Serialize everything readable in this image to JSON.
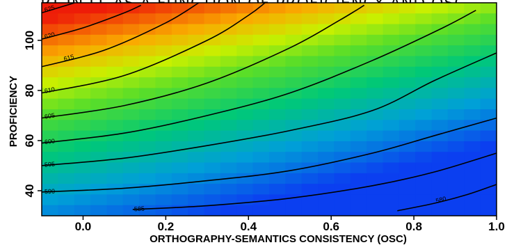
{
  "chart_data": {
    "type": "heatmap",
    "title": "RT IN LL AS A FUNCTION OF PROFICIENCY AND OSC",
    "xlabel": "ORTHOGRAPHY-SEMANTICS CONSISTENCY (OSC)",
    "ylabel": "PROFICIENCY",
    "xlim": [
      -0.1,
      1.0
    ],
    "ylim": [
      30,
      115
    ],
    "x_ticks": [
      {
        "value": 0.0,
        "label": "0.0"
      },
      {
        "value": 0.2,
        "label": "0.2"
      },
      {
        "value": 0.4,
        "label": "0.4"
      },
      {
        "value": 0.6,
        "label": "0.6"
      },
      {
        "value": 0.8,
        "label": "0.8"
      },
      {
        "value": 1.0,
        "label": "1.0"
      }
    ],
    "y_ticks": [
      {
        "value": 40,
        "label": "40"
      },
      {
        "value": 60,
        "label": "60"
      },
      {
        "value": 80,
        "label": "80"
      },
      {
        "value": 100,
        "label": "100"
      }
    ],
    "color_scale": {
      "low_color": "#0b3ff0",
      "mid_color": "#c8f000",
      "high_color": "#ee1c08"
    },
    "contours": [
      {
        "level": 580,
        "label": "580",
        "points": [
          [
            0.76,
            32
          ],
          [
            0.85,
            35
          ],
          [
            0.93,
            38.5
          ],
          [
            1.0,
            42.5
          ]
        ],
        "label_at": 0.85
      },
      {
        "level": 585,
        "label": "585",
        "points": [
          [
            0.12,
            32.5
          ],
          [
            0.3,
            34
          ],
          [
            0.5,
            37
          ],
          [
            0.7,
            42
          ],
          [
            0.85,
            47.5
          ],
          [
            1.0,
            55
          ]
        ],
        "label_at": 0.12
      },
      {
        "level": 590,
        "label": "590",
        "points": [
          [
            -0.1,
            39.5
          ],
          [
            0.1,
            41
          ],
          [
            0.3,
            44
          ],
          [
            0.5,
            48
          ],
          [
            0.7,
            55
          ],
          [
            0.85,
            62
          ],
          [
            1.0,
            69
          ]
        ],
        "label_at": -0.1
      },
      {
        "level": 595,
        "label": "595",
        "points": [
          [
            -0.1,
            50
          ],
          [
            0.1,
            53
          ],
          [
            0.3,
            58
          ],
          [
            0.5,
            64
          ],
          [
            0.7,
            72
          ],
          [
            0.85,
            84
          ],
          [
            1.0,
            95
          ]
        ],
        "label_at": -0.1
      },
      {
        "level": 600,
        "label": "600",
        "points": [
          [
            -0.1,
            59
          ],
          [
            0.1,
            63
          ],
          [
            0.3,
            70
          ],
          [
            0.5,
            79
          ],
          [
            0.7,
            92
          ],
          [
            0.87,
            105
          ],
          [
            0.95,
            112
          ]
        ],
        "label_at": -0.1
      },
      {
        "level": 605,
        "label": "605",
        "points": [
          [
            -0.1,
            69
          ],
          [
            0.1,
            74
          ],
          [
            0.3,
            83
          ],
          [
            0.5,
            97
          ],
          [
            0.62,
            108
          ],
          [
            0.68,
            114
          ]
        ],
        "label_at": -0.1
      },
      {
        "level": 610,
        "label": "610",
        "points": [
          [
            -0.1,
            79
          ],
          [
            0.1,
            86
          ],
          [
            0.3,
            100
          ],
          [
            0.4,
            110
          ],
          [
            0.44,
            115
          ]
        ],
        "label_at": -0.1
      },
      {
        "level": 615,
        "label": "615",
        "points": [
          [
            -0.1,
            89.5
          ],
          [
            0.05,
            96
          ],
          [
            0.2,
            107
          ],
          [
            0.28,
            115
          ]
        ],
        "label_at": -0.05
      },
      {
        "level": 620,
        "label": "620",
        "points": [
          [
            -0.1,
            100.5
          ],
          [
            0.0,
            105
          ],
          [
            0.1,
            111
          ],
          [
            0.14,
            114
          ]
        ],
        "label_at": -0.1
      },
      {
        "level": 625,
        "label": "625",
        "points": [
          [
            -0.1,
            111
          ],
          [
            -0.05,
            113.5
          ],
          [
            -0.02,
            115
          ]
        ],
        "label_at": -0.1
      }
    ]
  }
}
